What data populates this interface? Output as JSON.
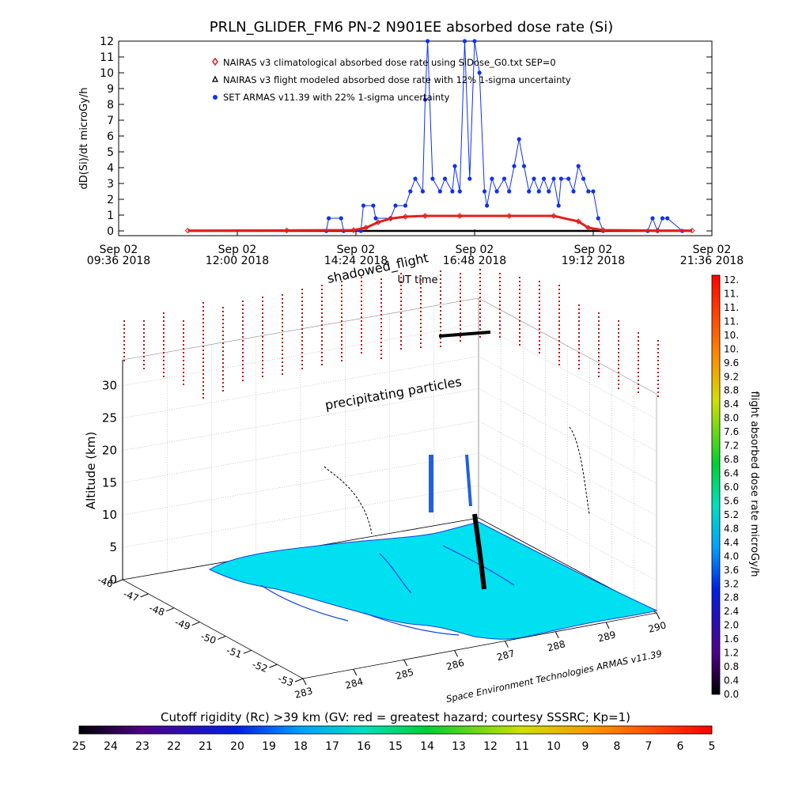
{
  "colors": {
    "nairas_climatological": "#e0201c",
    "nairas_flight": "#000000",
    "armas": "#1030f0",
    "map_fill": "#00e0f0",
    "coast": "#1040e0",
    "cutoff_markers": "#c01010"
  },
  "colorbar_dose": {
    "labels": [
      "12.",
      "11.",
      "11.",
      "11.",
      "10.",
      "10.",
      "9.6",
      "9.2",
      "8.8",
      "8.4",
      "8.0",
      "7.6",
      "7.2",
      "6.8",
      "6.4",
      "6.0",
      "5.6",
      "5.2",
      "4.8",
      "4.4",
      "4.0",
      "3.6",
      "3.2",
      "2.8",
      "2.4",
      "2.0",
      "1.6",
      "1.2",
      "0.8",
      "0.4",
      "0.0"
    ],
    "title": "flight absorbed dose rate microGy/h"
  },
  "colorbar_cutoff": {
    "labels": [
      "25",
      "24",
      "23",
      "22",
      "21",
      "20",
      "19",
      "18",
      "17",
      "16",
      "15",
      "14",
      "13",
      "12",
      "11",
      "10",
      "9",
      "8",
      "7",
      "6",
      "5"
    ],
    "title": "Cutoff rigidity (Rc) >39 km (GV: red = greatest hazard; courtesy SSSRC; Kp=1)"
  },
  "panel3d": {
    "zlabel": "Altitude (km)",
    "z_ticks": [
      "0",
      "5",
      "10",
      "15",
      "20",
      "25",
      "30"
    ],
    "lat_ticks": [
      "-46",
      "-47",
      "-48",
      "-49",
      "-50",
      "-51",
      "-52",
      "-53"
    ],
    "lon_ticks": [
      "283",
      "284",
      "285",
      "286",
      "287",
      "288",
      "289",
      "290"
    ],
    "annotations": [
      "shadowed_flight",
      "precipitating particles"
    ],
    "credit": "Space Environment Technologies ARMAS v11.39"
  },
  "chart_data": {
    "type": "scatter",
    "title": "PRLN_GLIDER_FM6 PN-2 N901EE absorbed dose rate (Si)",
    "xlabel": "UT time",
    "ylabel": "dD(Si)/dt microGy/h",
    "ylim": [
      0,
      12
    ],
    "y_ticks": [
      "0",
      "1",
      "2",
      "3",
      "4",
      "5",
      "6",
      "7",
      "8",
      "9",
      "10",
      "11",
      "12"
    ],
    "x_ticks": [
      {
        "date": "Sep 02",
        "time": "09:36 2018"
      },
      {
        "date": "Sep 02",
        "time": "12:00 2018"
      },
      {
        "date": "Sep 02",
        "time": "14:24 2018"
      },
      {
        "date": "Sep 02",
        "time": "16:48 2018"
      },
      {
        "date": "Sep 02",
        "time": "19:12 2018"
      },
      {
        "date": "Sep 02",
        "time": "21:36 2018"
      }
    ],
    "xlim_hours": [
      9.6,
      21.6
    ],
    "series": [
      {
        "name": "NAIRAS v3 climatological absorbed dose rate using SiDose_G0.txt SEP=0",
        "style": "diamond",
        "points": [
          [
            11.0,
            0.02
          ],
          [
            13.0,
            0.03
          ],
          [
            14.35,
            0.05
          ],
          [
            14.6,
            0.2
          ],
          [
            14.85,
            0.55
          ],
          [
            15.1,
            0.78
          ],
          [
            15.4,
            0.9
          ],
          [
            15.8,
            0.95
          ],
          [
            16.5,
            0.95
          ],
          [
            17.5,
            0.95
          ],
          [
            18.4,
            0.95
          ],
          [
            18.9,
            0.6
          ],
          [
            19.1,
            0.2
          ],
          [
            19.4,
            0.05
          ],
          [
            20.5,
            0.02
          ],
          [
            21.2,
            0.02
          ]
        ]
      },
      {
        "name": "NAIRAS v3 flight modeled absorbed dose rate with 12% 1-sigma uncertainty",
        "style": "triangle",
        "points": [
          [
            11.0,
            0.0
          ],
          [
            21.2,
            0.0
          ]
        ]
      },
      {
        "name": "SET ARMAS v11.39 with 22% 1-sigma uncertainty",
        "style": "circle",
        "points": [
          [
            13.8,
            0.0
          ],
          [
            13.85,
            0.8
          ],
          [
            14.1,
            0.8
          ],
          [
            14.15,
            0.0
          ],
          [
            14.5,
            0.0
          ],
          [
            14.55,
            1.6
          ],
          [
            14.75,
            1.6
          ],
          [
            14.8,
            0.8
          ],
          [
            15.1,
            0.8
          ],
          [
            15.2,
            1.6
          ],
          [
            15.4,
            1.6
          ],
          [
            15.5,
            2.5
          ],
          [
            15.6,
            3.3
          ],
          [
            15.75,
            2.5
          ],
          [
            15.8,
            8.3
          ],
          [
            15.85,
            12.0
          ],
          [
            15.95,
            3.3
          ],
          [
            16.1,
            2.5
          ],
          [
            16.2,
            3.3
          ],
          [
            16.35,
            2.5
          ],
          [
            16.4,
            4.1
          ],
          [
            16.5,
            2.5
          ],
          [
            16.6,
            12.0
          ],
          [
            16.7,
            3.3
          ],
          [
            16.8,
            12.0
          ],
          [
            16.9,
            10.0
          ],
          [
            17.0,
            2.5
          ],
          [
            17.05,
            1.6
          ],
          [
            17.15,
            3.3
          ],
          [
            17.25,
            2.5
          ],
          [
            17.4,
            3.3
          ],
          [
            17.5,
            2.5
          ],
          [
            17.6,
            4.1
          ],
          [
            17.7,
            5.8
          ],
          [
            17.8,
            4.1
          ],
          [
            17.9,
            2.5
          ],
          [
            18.0,
            3.3
          ],
          [
            18.1,
            2.5
          ],
          [
            18.2,
            3.3
          ],
          [
            18.3,
            2.5
          ],
          [
            18.4,
            3.3
          ],
          [
            18.5,
            1.6
          ],
          [
            18.55,
            3.3
          ],
          [
            18.7,
            3.3
          ],
          [
            18.8,
            2.5
          ],
          [
            18.9,
            4.1
          ],
          [
            19.0,
            3.3
          ],
          [
            19.1,
            2.5
          ],
          [
            19.2,
            2.5
          ],
          [
            19.3,
            0.8
          ],
          [
            19.4,
            0.0
          ],
          [
            20.3,
            0.0
          ],
          [
            20.4,
            0.8
          ],
          [
            20.5,
            0.0
          ],
          [
            20.6,
            0.8
          ],
          [
            20.7,
            0.8
          ],
          [
            21.0,
            0.0
          ]
        ]
      }
    ],
    "legend_placement": "top-left inside plot",
    "grid": false
  }
}
